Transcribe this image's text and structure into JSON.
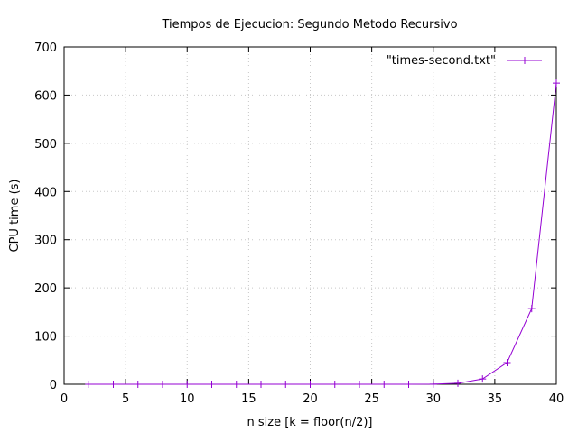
{
  "chart_data": {
    "type": "line",
    "title": "Tiempos de Ejecucion: Segundo Metodo Recursivo",
    "xlabel": "n size [k = floor(n/2)]",
    "ylabel": "CPU time (s)",
    "xlim": [
      0,
      40
    ],
    "ylim": [
      0,
      700
    ],
    "xticks": [
      0,
      5,
      10,
      15,
      20,
      25,
      30,
      35,
      40
    ],
    "yticks": [
      0,
      100,
      200,
      300,
      400,
      500,
      600,
      700
    ],
    "grid": true,
    "legend_position": "top-right",
    "series": [
      {
        "name": "\"times-second.txt\"",
        "color": "#9400d3",
        "marker": "plus",
        "x": [
          2,
          4,
          6,
          8,
          10,
          12,
          14,
          16,
          18,
          20,
          22,
          24,
          26,
          28,
          30,
          32,
          34,
          36,
          38,
          40
        ],
        "y": [
          0,
          0,
          0,
          0,
          0,
          0,
          0,
          0,
          0,
          0,
          0,
          0,
          0,
          0,
          0.3,
          2,
          11,
          45,
          157,
          625
        ]
      }
    ]
  }
}
